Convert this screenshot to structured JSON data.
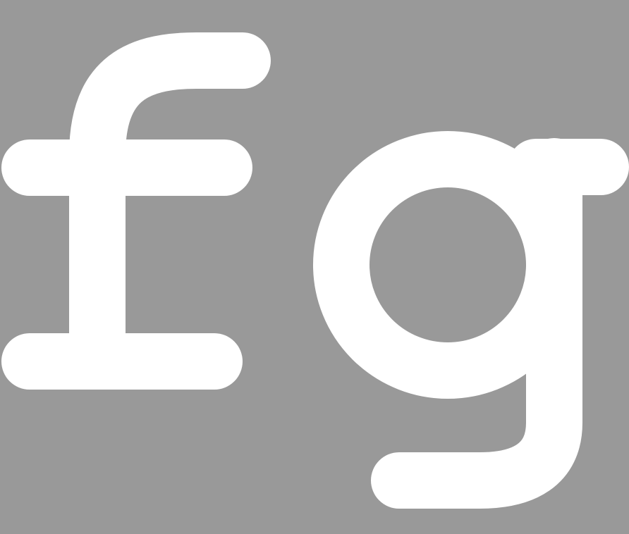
{
  "glyphs": {
    "text": "fg",
    "first": "f",
    "second": "g"
  },
  "colors": {
    "background": "#999999",
    "glyph": "#ffffff"
  }
}
